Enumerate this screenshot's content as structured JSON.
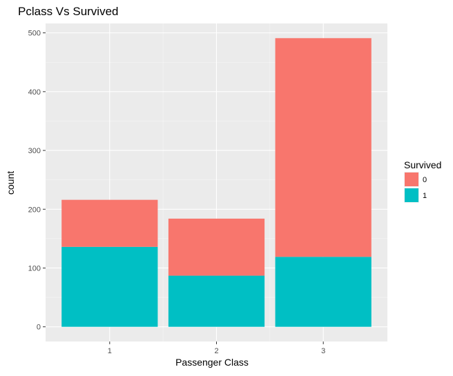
{
  "chart_data": {
    "type": "bar",
    "stacked": true,
    "title": "Pclass Vs Survived",
    "xlabel": "Passenger Class",
    "ylabel": "count",
    "categories": [
      "1",
      "2",
      "3"
    ],
    "series": [
      {
        "name": "0",
        "values": [
          80,
          97,
          372
        ],
        "color": "#F8766D"
      },
      {
        "name": "1",
        "values": [
          136,
          87,
          119
        ],
        "color": "#00BFC4"
      }
    ],
    "ylim": [
      -25,
      516
    ],
    "yticks": [
      0,
      100,
      200,
      300,
      400,
      500
    ],
    "legend": {
      "title": "Survived",
      "position": "right",
      "entries": [
        {
          "label": "0",
          "color": "#F8766D"
        },
        {
          "label": "1",
          "color": "#00BFC4"
        }
      ]
    },
    "grid": true,
    "panel_background": "#EBEBEB",
    "grid_color": "#FFFFFF"
  }
}
